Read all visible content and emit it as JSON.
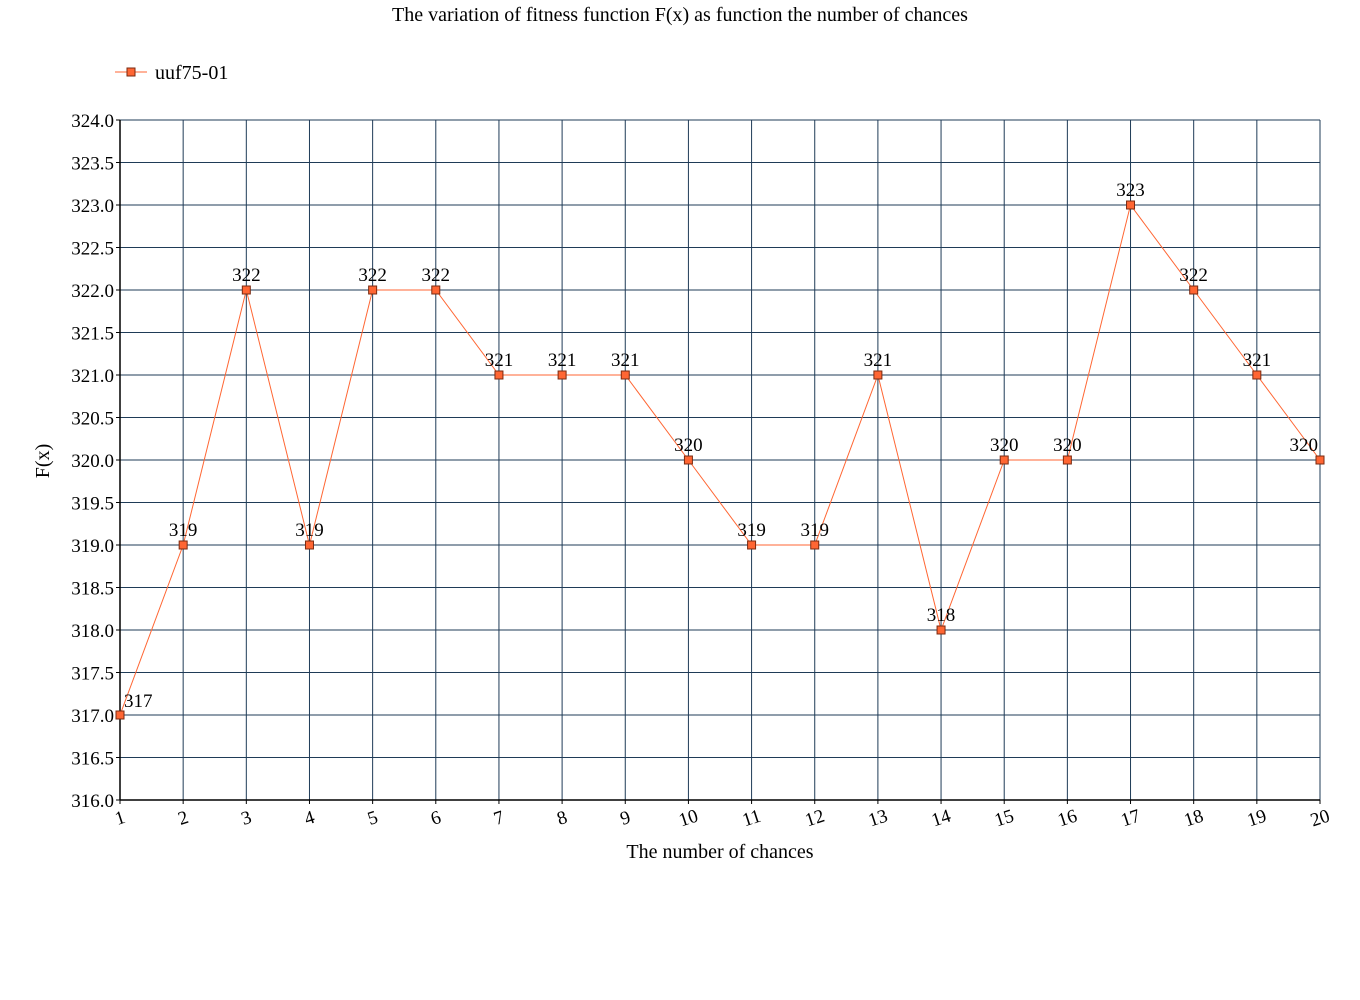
{
  "chart_data": {
    "type": "line",
    "title": "The variation of fitness function F(x) as function the number of chances",
    "xlabel": "The number of chances",
    "ylabel": "F(x)",
    "x": [
      1,
      2,
      3,
      4,
      5,
      6,
      7,
      8,
      9,
      10,
      11,
      12,
      13,
      14,
      15,
      16,
      17,
      18,
      19,
      20
    ],
    "ylim": [
      316.0,
      324.0
    ],
    "y_ticks": [
      "316.0",
      "316.5",
      "317.0",
      "317.5",
      "318.0",
      "318.5",
      "319.0",
      "319.5",
      "320.0",
      "320.5",
      "321.0",
      "321.5",
      "322.0",
      "322.5",
      "323.0",
      "323.5",
      "324.0"
    ],
    "grid": true,
    "legend_position": "top-left",
    "series": [
      {
        "name": "uuf75-01",
        "color": "#ff6633",
        "marker": "square",
        "values": [
          317,
          319,
          322,
          319,
          322,
          322,
          321,
          321,
          321,
          320,
          319,
          319,
          321,
          318,
          320,
          320,
          323,
          322,
          321,
          320
        ]
      }
    ]
  }
}
